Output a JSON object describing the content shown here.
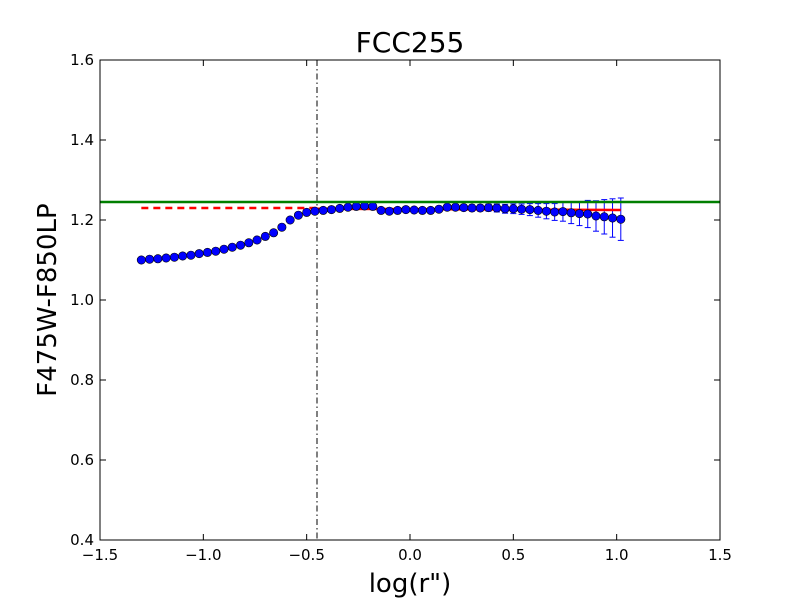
{
  "chart_data": {
    "type": "scatter",
    "title": "FCC255",
    "xlabel": "log(r\")",
    "ylabel": "F475W-F850LP",
    "xlim": [
      -1.5,
      1.5
    ],
    "ylim": [
      0.4,
      1.6
    ],
    "xticks": [
      -1.5,
      -1.0,
      -0.5,
      0.0,
      0.5,
      1.0,
      1.5
    ],
    "xtick_labels": [
      "−1.5",
      "−1.0",
      "−0.5",
      "0.0",
      "0.5",
      "1.0",
      "1.5"
    ],
    "yticks": [
      0.4,
      0.6,
      0.8,
      1.0,
      1.2,
      1.4,
      1.6
    ],
    "ytick_labels": [
      "0.4",
      "0.6",
      "0.8",
      "1.0",
      "1.2",
      "1.4",
      "1.6"
    ],
    "grid": false,
    "colors": {
      "points": "#0000ff",
      "errorbars": "#0000ff",
      "model_fit": "#ff0000",
      "reference_line": "#007f00",
      "vline": "#000000"
    },
    "series": [
      {
        "style": "points-with-errorbars",
        "x": [
          -1.3,
          -1.26,
          -1.22,
          -1.18,
          -1.14,
          -1.1,
          -1.06,
          -1.02,
          -0.98,
          -0.94,
          -0.9,
          -0.86,
          -0.82,
          -0.78,
          -0.74,
          -0.7,
          -0.66,
          -0.62,
          -0.58,
          -0.54,
          -0.5,
          -0.46,
          -0.42,
          -0.38,
          -0.34,
          -0.3,
          -0.26,
          -0.22,
          -0.18,
          -0.14,
          -0.1,
          -0.06,
          -0.02,
          0.02,
          0.06,
          0.1,
          0.14,
          0.18,
          0.22,
          0.26,
          0.3,
          0.34,
          0.38,
          0.42,
          0.46,
          0.5,
          0.54,
          0.58,
          0.62,
          0.66,
          0.7,
          0.74,
          0.78,
          0.82,
          0.86,
          0.9,
          0.94,
          0.98,
          1.02
        ],
        "y": [
          1.1,
          1.102,
          1.103,
          1.105,
          1.107,
          1.11,
          1.112,
          1.116,
          1.119,
          1.122,
          1.127,
          1.132,
          1.137,
          1.143,
          1.15,
          1.159,
          1.168,
          1.182,
          1.2,
          1.212,
          1.219,
          1.222,
          1.224,
          1.226,
          1.229,
          1.232,
          1.234,
          1.235,
          1.234,
          1.224,
          1.222,
          1.224,
          1.226,
          1.225,
          1.224,
          1.224,
          1.227,
          1.232,
          1.232,
          1.231,
          1.23,
          1.23,
          1.231,
          1.23,
          1.228,
          1.228,
          1.227,
          1.226,
          1.224,
          1.222,
          1.22,
          1.221,
          1.218,
          1.216,
          1.215,
          1.21,
          1.208,
          1.205,
          1.202
        ],
        "yerr": [
          0.002,
          0.002,
          0.002,
          0.002,
          0.002,
          0.002,
          0.002,
          0.002,
          0.002,
          0.002,
          0.002,
          0.002,
          0.002,
          0.002,
          0.002,
          0.002,
          0.002,
          0.002,
          0.002,
          0.002,
          0.002,
          0.002,
          0.002,
          0.003,
          0.003,
          0.003,
          0.003,
          0.003,
          0.004,
          0.004,
          0.004,
          0.004,
          0.005,
          0.005,
          0.005,
          0.005,
          0.006,
          0.006,
          0.007,
          0.007,
          0.008,
          0.008,
          0.009,
          0.01,
          0.011,
          0.012,
          0.013,
          0.015,
          0.017,
          0.019,
          0.021,
          0.024,
          0.027,
          0.03,
          0.034,
          0.038,
          0.043,
          0.048,
          0.053
        ]
      },
      {
        "style": "dashed-line",
        "x": [
          -1.3,
          -0.45
        ],
        "y": [
          1.23,
          1.23
        ]
      },
      {
        "style": "solid-line",
        "x": [
          -0.45,
          1.02
        ],
        "y": [
          1.228,
          1.225
        ]
      }
    ],
    "hline": {
      "y": 1.245
    },
    "vline": {
      "x": -0.45
    }
  }
}
